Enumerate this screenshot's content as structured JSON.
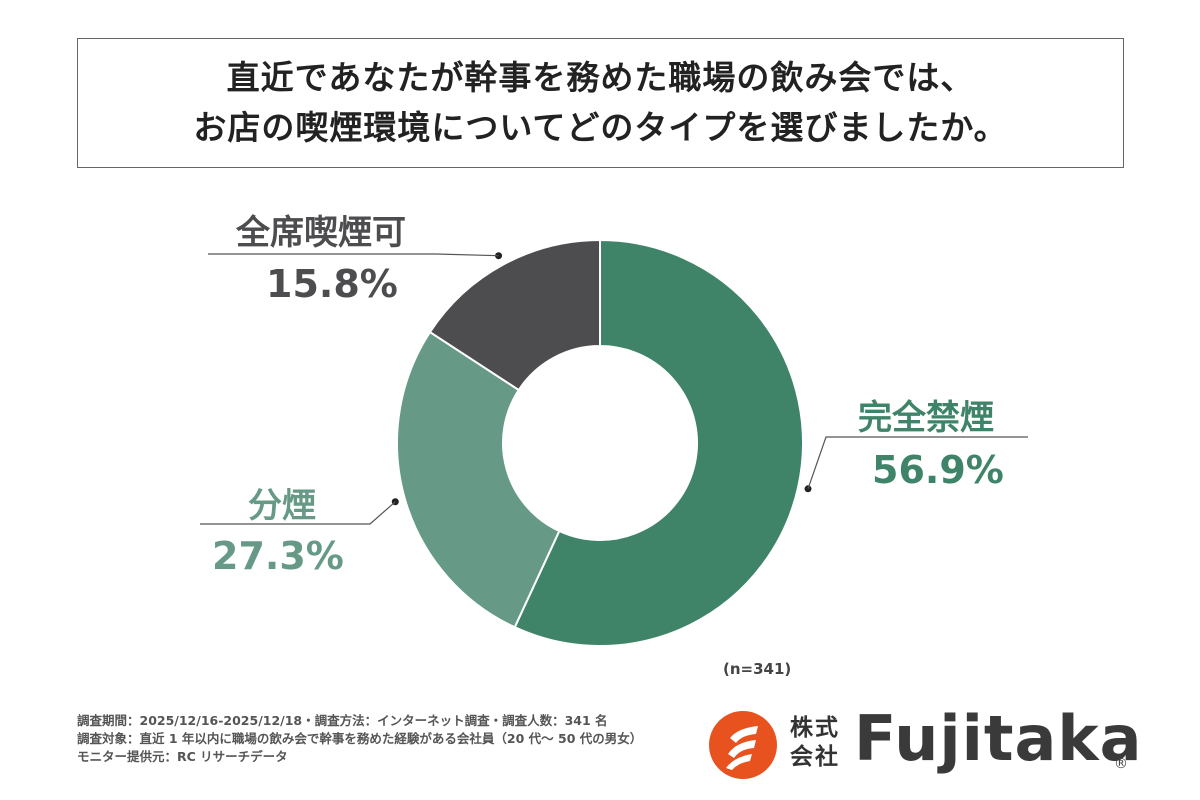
{
  "title": {
    "line1": "直近であなたが幹事を務めた職場の飲み会では、",
    "line2": "お店の喫煙環境についてどのタイプを選びましたか。"
  },
  "chart_data": {
    "type": "pie",
    "donut": true,
    "unit": "%",
    "slices": [
      {
        "label": "完全禁煙",
        "value": 56.9,
        "display": "56.9%",
        "color": "#3f8469"
      },
      {
        "label": "分煙",
        "value": 27.3,
        "display": "27.3%",
        "color": "#669a86"
      },
      {
        "label": "全席喫煙可",
        "value": 15.8,
        "display": "15.8%",
        "color": "#4d4c4f"
      }
    ],
    "sample_size": "(n=341)"
  },
  "notes": {
    "line1": "調査期間：2025/12/16-2025/12/18・調査方法：インターネット調査・調査人数：341 名",
    "line2": "調査対象：直近 1 年以内に職場の飲み会で幹事を務めた経験がある会社員（20 代〜 50 代の男女）",
    "line3": "モニター提供元：RC リサーチデータ"
  },
  "logo": {
    "corp_line1": "株式",
    "corp_line2": "会社",
    "name": "Fujitaka",
    "reg_mark": "®",
    "mark_color": "#e8521f"
  }
}
